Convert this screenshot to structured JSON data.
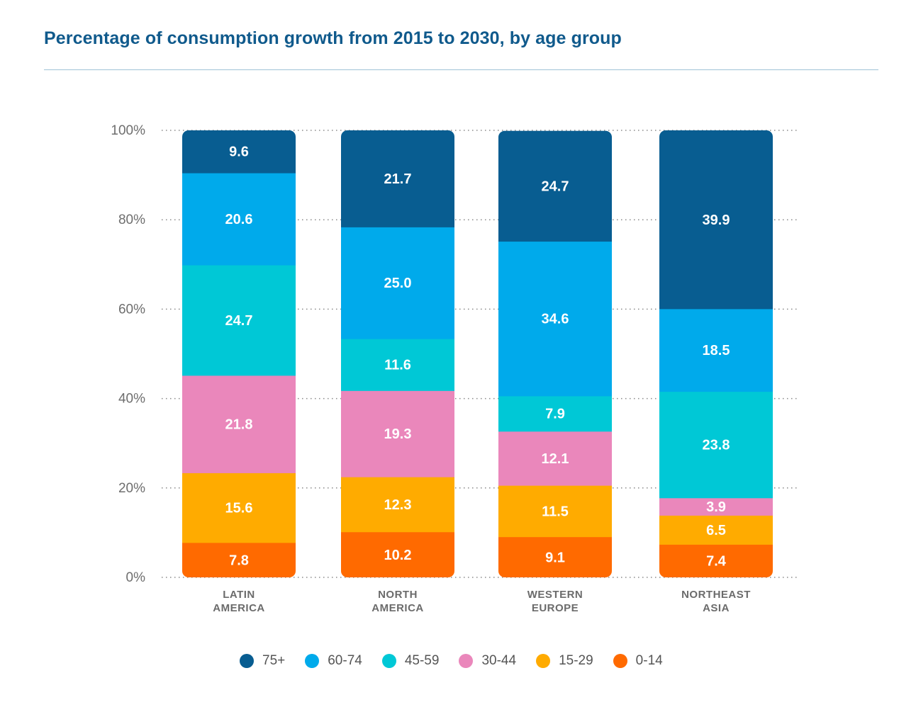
{
  "title": "Percentage of consumption growth from 2015 to 2030, by age group",
  "chart_data": {
    "type": "bar",
    "stacked": true,
    "title": "Percentage of consumption growth from 2015 to 2030, by age group",
    "xlabel": "",
    "ylabel": "",
    "ylim": [
      0,
      100
    ],
    "yticks": [
      {
        "value": 0,
        "label": "0%"
      },
      {
        "value": 20,
        "label": "20%"
      },
      {
        "value": 40,
        "label": "40%"
      },
      {
        "value": 60,
        "label": "60%"
      },
      {
        "value": 80,
        "label": "80%"
      },
      {
        "value": 100,
        "label": "100%"
      }
    ],
    "grid": true,
    "categories": [
      [
        "LATIN",
        "AMERICA"
      ],
      [
        "NORTH",
        "AMERICA"
      ],
      [
        "WESTERN",
        "EUROPE"
      ],
      [
        "NORTHEAST",
        "ASIA"
      ]
    ],
    "series": [
      {
        "name": "0-14",
        "color": "#ff6a00",
        "values": [
          7.8,
          10.2,
          9.1,
          7.4
        ],
        "labels": [
          "7.8",
          "10.2",
          "9.1",
          "7.4"
        ]
      },
      {
        "name": "15-29",
        "color": "#ffab00",
        "values": [
          15.6,
          12.3,
          11.5,
          6.5
        ],
        "labels": [
          "15.6",
          "12.3",
          "11.5",
          "6.5"
        ]
      },
      {
        "name": "30-44",
        "color": "#ea87bb",
        "values": [
          21.8,
          19.3,
          12.1,
          3.9
        ],
        "labels": [
          "21.8",
          "19.3",
          "12.1",
          "3.9"
        ]
      },
      {
        "name": "45-59",
        "color": "#00c8d6",
        "values": [
          24.7,
          11.6,
          7.9,
          23.8
        ],
        "labels": [
          "24.7",
          "11.6",
          "7.9",
          "23.8"
        ]
      },
      {
        "name": "60-74",
        "color": "#00aaeb",
        "values": [
          20.6,
          25.0,
          34.6,
          18.5
        ],
        "labels": [
          "20.6",
          "25.0",
          "34.6",
          "18.5"
        ]
      },
      {
        "name": "75+",
        "color": "#085d91",
        "values": [
          9.6,
          21.7,
          24.7,
          39.9
        ],
        "labels": [
          "9.6",
          "21.7",
          "24.7",
          "39.9"
        ]
      }
    ],
    "legend": {
      "placement": "bottom-center",
      "order": [
        "75+",
        "60-74",
        "45-59",
        "30-44",
        "15-29",
        "0-14"
      ]
    }
  }
}
